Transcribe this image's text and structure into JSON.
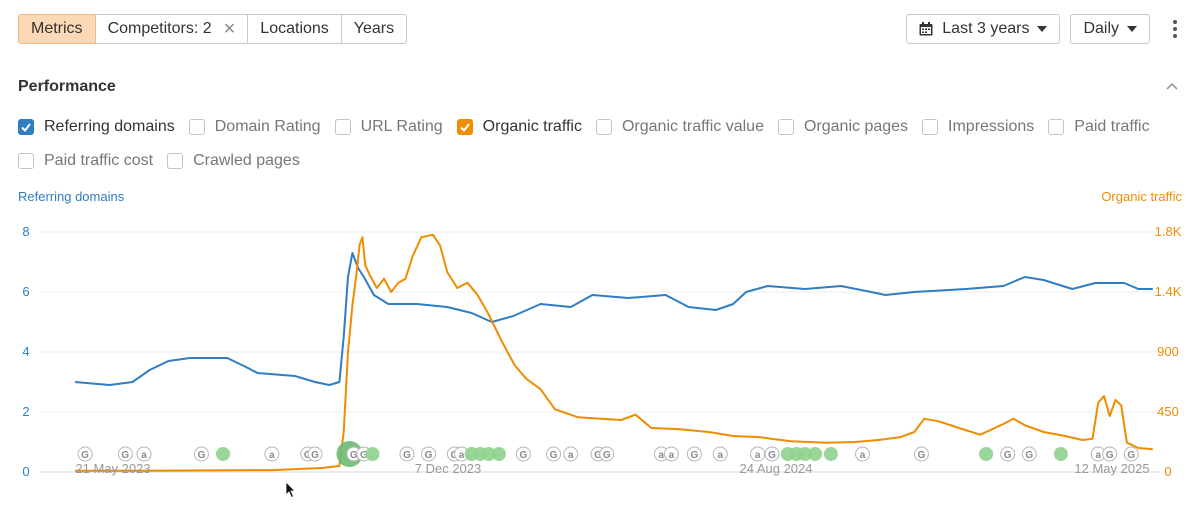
{
  "toolbar": {
    "metrics_label": "Metrics",
    "competitors_label": "Competitors: 2",
    "locations_label": "Locations",
    "years_label": "Years",
    "range_label": "Last 3 years",
    "interval_label": "Daily"
  },
  "section": {
    "title": "Performance"
  },
  "checkboxes": [
    {
      "label": "Referring domains",
      "checked": true,
      "color": "#2f7dc3"
    },
    {
      "label": "Domain Rating",
      "checked": false
    },
    {
      "label": "URL Rating",
      "checked": false
    },
    {
      "label": "Organic traffic",
      "checked": true,
      "color": "#f08c00"
    },
    {
      "label": "Organic traffic value",
      "checked": false
    },
    {
      "label": "Organic pages",
      "checked": false
    },
    {
      "label": "Impressions",
      "checked": false
    },
    {
      "label": "Paid traffic",
      "checked": false
    },
    {
      "label": "Paid traffic cost",
      "checked": false
    },
    {
      "label": "Crawled pages",
      "checked": false
    }
  ],
  "chart_data": {
    "type": "line",
    "left_axis": {
      "label": "Referring domains",
      "ticks": [
        "0",
        "2",
        "4",
        "6",
        "8"
      ],
      "range": [
        0,
        8
      ],
      "color": "#2f7dc3"
    },
    "right_axis": {
      "label": "Organic traffic",
      "ticks": [
        "0",
        "450",
        "900",
        "1.4K",
        "1.8K"
      ],
      "range": [
        0,
        1800
      ],
      "color": "#f08c00"
    },
    "x_labels": [
      "21 May 2023",
      "7 Dec 2023",
      "24 Aug 2024",
      "12 May 2025"
    ],
    "x_domain": [
      "2023-05-01",
      "2025-05-25"
    ],
    "grid": true,
    "series": [
      {
        "name": "Referring domains",
        "axis": "left",
        "color": "#2f7dc3",
        "points": [
          [
            "2023-05-01",
            3.0
          ],
          [
            "2023-05-25",
            2.9
          ],
          [
            "2023-06-10",
            3.0
          ],
          [
            "2023-06-22",
            3.4
          ],
          [
            "2023-07-05",
            3.7
          ],
          [
            "2023-07-20",
            3.8
          ],
          [
            "2023-08-15",
            3.8
          ],
          [
            "2023-08-28",
            3.5
          ],
          [
            "2023-09-05",
            3.3
          ],
          [
            "2023-10-01",
            3.2
          ],
          [
            "2023-10-15",
            3.0
          ],
          [
            "2023-10-25",
            2.9
          ],
          [
            "2023-11-01",
            3.0
          ],
          [
            "2023-11-04",
            4.5
          ],
          [
            "2023-11-07",
            6.5
          ],
          [
            "2023-11-10",
            7.3
          ],
          [
            "2023-11-14",
            6.8
          ],
          [
            "2023-11-18",
            6.5
          ],
          [
            "2023-11-25",
            5.9
          ],
          [
            "2023-12-05",
            5.6
          ],
          [
            "2023-12-25",
            5.6
          ],
          [
            "2024-01-15",
            5.5
          ],
          [
            "2024-02-01",
            5.3
          ],
          [
            "2024-02-15",
            5.0
          ],
          [
            "2024-03-01",
            5.2
          ],
          [
            "2024-03-20",
            5.6
          ],
          [
            "2024-04-10",
            5.5
          ],
          [
            "2024-04-25",
            5.9
          ],
          [
            "2024-05-20",
            5.8
          ],
          [
            "2024-06-15",
            5.9
          ],
          [
            "2024-07-01",
            5.5
          ],
          [
            "2024-07-20",
            5.4
          ],
          [
            "2024-08-01",
            5.6
          ],
          [
            "2024-08-10",
            6.0
          ],
          [
            "2024-08-25",
            6.2
          ],
          [
            "2024-09-20",
            6.1
          ],
          [
            "2024-10-15",
            6.2
          ],
          [
            "2024-11-05",
            6.0
          ],
          [
            "2024-11-15",
            5.9
          ],
          [
            "2024-12-05",
            6.0
          ],
          [
            "2025-01-10",
            6.1
          ],
          [
            "2025-02-05",
            6.2
          ],
          [
            "2025-02-20",
            6.5
          ],
          [
            "2025-03-05",
            6.4
          ],
          [
            "2025-03-25",
            6.1
          ],
          [
            "2025-04-10",
            6.3
          ],
          [
            "2025-04-30",
            6.3
          ],
          [
            "2025-05-10",
            6.1
          ],
          [
            "2025-05-20",
            6.1
          ]
        ]
      },
      {
        "name": "Organic traffic",
        "axis": "right",
        "color": "#f08c00",
        "points": [
          [
            "2023-05-01",
            10
          ],
          [
            "2023-06-15",
            10
          ],
          [
            "2023-08-01",
            12
          ],
          [
            "2023-09-15",
            14
          ],
          [
            "2023-10-20",
            30
          ],
          [
            "2023-11-01",
            45
          ],
          [
            "2023-11-04",
            300
          ],
          [
            "2023-11-07",
            900
          ],
          [
            "2023-11-10",
            1250
          ],
          [
            "2023-11-13",
            1500
          ],
          [
            "2023-11-15",
            1700
          ],
          [
            "2023-11-17",
            1760
          ],
          [
            "2023-11-19",
            1550
          ],
          [
            "2023-11-22",
            1480
          ],
          [
            "2023-11-27",
            1380
          ],
          [
            "2023-12-02",
            1450
          ],
          [
            "2023-12-07",
            1350
          ],
          [
            "2023-12-12",
            1420
          ],
          [
            "2023-12-17",
            1450
          ],
          [
            "2023-12-22",
            1620
          ],
          [
            "2023-12-28",
            1760
          ],
          [
            "2024-01-05",
            1780
          ],
          [
            "2024-01-10",
            1700
          ],
          [
            "2024-01-15",
            1500
          ],
          [
            "2024-01-22",
            1380
          ],
          [
            "2024-01-29",
            1420
          ],
          [
            "2024-02-05",
            1330
          ],
          [
            "2024-02-12",
            1200
          ],
          [
            "2024-02-22",
            980
          ],
          [
            "2024-03-02",
            800
          ],
          [
            "2024-03-10",
            700
          ],
          [
            "2024-03-20",
            620
          ],
          [
            "2024-03-30",
            470
          ],
          [
            "2024-04-15",
            410
          ],
          [
            "2024-05-01",
            400
          ],
          [
            "2024-05-15",
            390
          ],
          [
            "2024-05-25",
            430
          ],
          [
            "2024-06-05",
            330
          ],
          [
            "2024-06-25",
            320
          ],
          [
            "2024-07-15",
            300
          ],
          [
            "2024-08-01",
            270
          ],
          [
            "2024-08-20",
            260
          ],
          [
            "2024-09-10",
            230
          ],
          [
            "2024-10-05",
            220
          ],
          [
            "2024-10-25",
            225
          ],
          [
            "2024-11-10",
            240
          ],
          [
            "2024-11-25",
            260
          ],
          [
            "2024-12-05",
            300
          ],
          [
            "2024-12-12",
            400
          ],
          [
            "2024-12-22",
            380
          ],
          [
            "2025-01-05",
            330
          ],
          [
            "2025-01-20",
            280
          ],
          [
            "2025-02-05",
            360
          ],
          [
            "2025-02-12",
            400
          ],
          [
            "2025-02-20",
            350
          ],
          [
            "2025-03-05",
            300
          ],
          [
            "2025-03-20",
            270
          ],
          [
            "2025-04-01",
            240
          ],
          [
            "2025-04-08",
            250
          ],
          [
            "2025-04-12",
            520
          ],
          [
            "2025-04-16",
            570
          ],
          [
            "2025-04-20",
            420
          ],
          [
            "2025-04-24",
            540
          ],
          [
            "2025-04-28",
            500
          ],
          [
            "2025-05-02",
            220
          ],
          [
            "2025-05-10",
            180
          ],
          [
            "2025-05-20",
            170
          ]
        ]
      }
    ],
    "event_markers": [
      {
        "date": "2023-05-08",
        "type": "google"
      },
      {
        "date": "2023-06-05",
        "type": "google"
      },
      {
        "date": "2023-06-18",
        "type": "ahrefs"
      },
      {
        "date": "2023-07-28",
        "type": "google"
      },
      {
        "date": "2023-08-12",
        "type": "dot"
      },
      {
        "date": "2023-09-15",
        "type": "ahrefs"
      },
      {
        "date": "2023-10-10",
        "type": "google"
      },
      {
        "date": "2023-10-15",
        "type": "google"
      },
      {
        "date": "2023-11-08",
        "type": "big-dot"
      },
      {
        "date": "2023-11-11",
        "type": "google"
      },
      {
        "date": "2023-11-18",
        "type": "google"
      },
      {
        "date": "2023-11-24",
        "type": "dot"
      },
      {
        "date": "2023-12-18",
        "type": "google"
      },
      {
        "date": "2024-01-02",
        "type": "google"
      },
      {
        "date": "2024-01-20",
        "type": "google"
      },
      {
        "date": "2024-01-25",
        "type": "ahrefs"
      },
      {
        "date": "2024-02-01",
        "type": "dot"
      },
      {
        "date": "2024-02-07",
        "type": "dot"
      },
      {
        "date": "2024-02-13",
        "type": "dot"
      },
      {
        "date": "2024-02-20",
        "type": "dot"
      },
      {
        "date": "2024-03-08",
        "type": "google"
      },
      {
        "date": "2024-03-29",
        "type": "google"
      },
      {
        "date": "2024-04-10",
        "type": "ahrefs"
      },
      {
        "date": "2024-04-29",
        "type": "google"
      },
      {
        "date": "2024-05-05",
        "type": "google"
      },
      {
        "date": "2024-06-12",
        "type": "ahrefs"
      },
      {
        "date": "2024-06-19",
        "type": "ahrefs"
      },
      {
        "date": "2024-07-05",
        "type": "google"
      },
      {
        "date": "2024-07-23",
        "type": "ahrefs"
      },
      {
        "date": "2024-08-18",
        "type": "ahrefs"
      },
      {
        "date": "2024-08-28",
        "type": "google"
      },
      {
        "date": "2024-09-08",
        "type": "dot"
      },
      {
        "date": "2024-09-14",
        "type": "dot"
      },
      {
        "date": "2024-09-20",
        "type": "dot"
      },
      {
        "date": "2024-09-27",
        "type": "dot"
      },
      {
        "date": "2024-10-08",
        "type": "dot"
      },
      {
        "date": "2024-10-30",
        "type": "ahrefs"
      },
      {
        "date": "2024-12-10",
        "type": "google"
      },
      {
        "date": "2025-01-24",
        "type": "dot"
      },
      {
        "date": "2025-02-08",
        "type": "google"
      },
      {
        "date": "2025-02-23",
        "type": "google"
      },
      {
        "date": "2025-03-17",
        "type": "dot"
      },
      {
        "date": "2025-04-12",
        "type": "ahrefs"
      },
      {
        "date": "2025-04-20",
        "type": "google"
      },
      {
        "date": "2025-05-05",
        "type": "google"
      }
    ]
  }
}
